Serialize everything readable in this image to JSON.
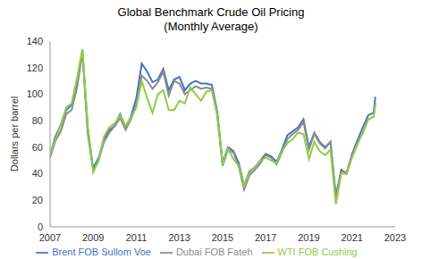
{
  "chart_data": {
    "type": "line",
    "title": "Global Benchmark Crude Oil Pricing",
    "subtitle": "(Monthly Average)",
    "y_label": "Dollars per barrel",
    "x": [
      2007,
      2007.25,
      2007.5,
      2007.75,
      2008,
      2008.25,
      2008.5,
      2008.75,
      2009,
      2009.25,
      2009.5,
      2009.75,
      2010,
      2010.25,
      2010.5,
      2010.75,
      2011,
      2011.25,
      2011.5,
      2011.75,
      2012,
      2012.25,
      2012.5,
      2012.75,
      2013,
      2013.25,
      2013.5,
      2013.75,
      2014,
      2014.25,
      2014.5,
      2014.75,
      2015,
      2015.25,
      2015.5,
      2015.75,
      2016,
      2016.25,
      2016.5,
      2016.75,
      2017,
      2017.25,
      2017.5,
      2017.75,
      2018,
      2018.25,
      2018.5,
      2018.75,
      2019,
      2019.25,
      2019.5,
      2019.75,
      2020,
      2020.25,
      2020.5,
      2020.75,
      2021,
      2021.25,
      2021.5,
      2021.75,
      2022,
      2022.08
    ],
    "series": [
      {
        "name": "Brent FOB Sullom Voe",
        "color": "#4472c4",
        "values": [
          54,
          68,
          77,
          88,
          92,
          109,
          133,
          73,
          44,
          52,
          66,
          73,
          76,
          85,
          75,
          83,
          97,
          123,
          117,
          109,
          111,
          119,
          103,
          111,
          113,
          103,
          108,
          110,
          108,
          108,
          107,
          87,
          48,
          60,
          57,
          48,
          31,
          42,
          45,
          50,
          55,
          53,
          49,
          58,
          69,
          72,
          75,
          81,
          60,
          71,
          64,
          60,
          64,
          23,
          43,
          40,
          55,
          65,
          75,
          84,
          86,
          98
        ]
      },
      {
        "name": "Dubai FOB Fateh",
        "color": "#8c8c8c",
        "values": [
          52,
          65,
          72,
          85,
          88,
          105,
          131,
          70,
          42,
          50,
          64,
          71,
          76,
          82,
          73,
          81,
          92,
          114,
          110,
          104,
          109,
          117,
          99,
          110,
          108,
          100,
          103,
          106,
          104,
          105,
          104,
          84,
          46,
          58,
          56,
          45,
          28,
          39,
          43,
          48,
          54,
          52,
          47,
          56,
          66,
          70,
          73,
          79,
          58,
          70,
          63,
          59,
          64,
          21,
          42,
          41,
          54,
          63,
          71,
          81,
          83,
          94
        ]
      },
      {
        "name": "WTI FOB Cushing",
        "color": "#8fcc45",
        "values": [
          54,
          66,
          77,
          90,
          93,
          112,
          134,
          76,
          41,
          50,
          68,
          75,
          78,
          84,
          76,
          82,
          90,
          110,
          97,
          86,
          100,
          103,
          88,
          88,
          95,
          93,
          105,
          100,
          95,
          102,
          103,
          85,
          47,
          59,
          51,
          46,
          31,
          41,
          45,
          50,
          52,
          50,
          48,
          57,
          63,
          66,
          71,
          70,
          51,
          64,
          57,
          54,
          58,
          17,
          40,
          40,
          52,
          62,
          72,
          81,
          83,
          92
        ]
      }
    ],
    "xlim": [
      2007,
      2023
    ],
    "xticks": [
      2007,
      2009,
      2011,
      2013,
      2015,
      2017,
      2019,
      2021,
      2023
    ],
    "ylim": [
      0,
      140
    ],
    "yticks": [
      0,
      20,
      40,
      60,
      80,
      100,
      120,
      140
    ],
    "grid": false,
    "legend": "bottom"
  }
}
